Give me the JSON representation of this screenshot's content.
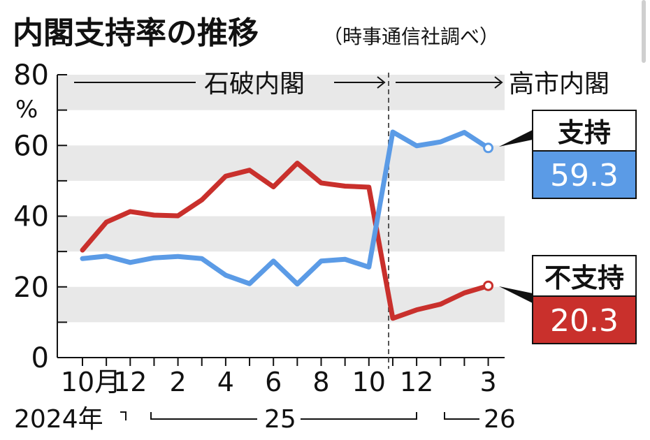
{
  "title": "内閣支持率の推移",
  "source": "（時事通信社調べ）",
  "y_unit": "%",
  "eras": [
    {
      "label": "石破内閣"
    },
    {
      "label": "高市内閣"
    }
  ],
  "year_labels": [
    "2024年",
    "25",
    "26"
  ],
  "chart_data": {
    "type": "line",
    "ylim": [
      0,
      80
    ],
    "yticks": [
      0,
      20,
      40,
      60,
      80
    ],
    "x_tick_labels": [
      "10月",
      "12",
      "2",
      "4",
      "6",
      "8",
      "10",
      "12",
      "3"
    ],
    "x": [
      "2024-10",
      "2024-11",
      "2024-12",
      "2025-01",
      "2025-02",
      "2025-03",
      "2025-04",
      "2025-05",
      "2025-06",
      "2025-07",
      "2025-08",
      "2025-09",
      "2025-10",
      "2025-11",
      "2025-12",
      "2026-01",
      "2026-02",
      "2026-03"
    ],
    "series": [
      {
        "name": "支持",
        "color": "#5b9be6",
        "values": [
          28.0,
          28.7,
          26.9,
          28.2,
          28.6,
          28.0,
          23.3,
          20.9,
          27.3,
          20.8,
          27.3,
          27.8,
          25.6,
          63.8,
          59.9,
          61.0,
          63.7,
          59.3
        ]
      },
      {
        "name": "不支持",
        "color": "#c9302c",
        "values": [
          30.4,
          38.3,
          41.3,
          40.3,
          40.1,
          44.6,
          51.3,
          53.0,
          48.3,
          55.0,
          49.4,
          48.5,
          48.2,
          11.1,
          13.5,
          15.1,
          18.3,
          20.3
        ]
      }
    ],
    "labels_latest": [
      {
        "name": "支持",
        "value": "59.3"
      },
      {
        "name": "不支持",
        "value": "20.3"
      }
    ]
  }
}
